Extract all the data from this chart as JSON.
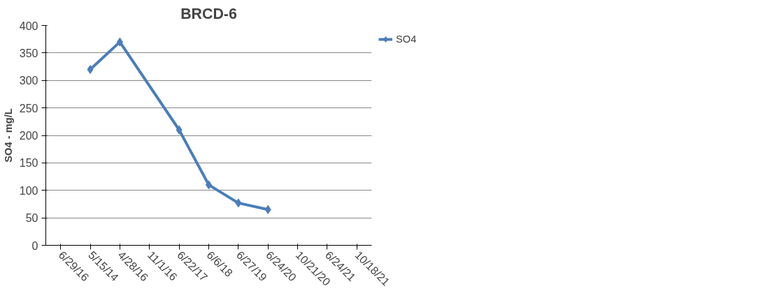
{
  "chart_data": {
    "type": "line",
    "title": "BRCD-6",
    "ylabel": "SO4 - mg/L",
    "categories": [
      "6/29/16",
      "5/15/14",
      "4/28/16",
      "11/1/16",
      "6/22/17",
      "6/6/18",
      "6/27/19",
      "6/24/20",
      "10/21/20",
      "6/24/21",
      "10/18/21"
    ],
    "series": [
      {
        "name": "SO4",
        "color": "#4a7ebb",
        "values": [
          null,
          320,
          370,
          null,
          210,
          110,
          77,
          65,
          null,
          null,
          null
        ]
      }
    ],
    "ylim": [
      0,
      400
    ],
    "yticks": [
      0,
      50,
      100,
      150,
      200,
      250,
      300,
      350,
      400
    ],
    "grid": "y",
    "legend": "top right",
    "marker": "diamond",
    "line_style": "solid"
  }
}
